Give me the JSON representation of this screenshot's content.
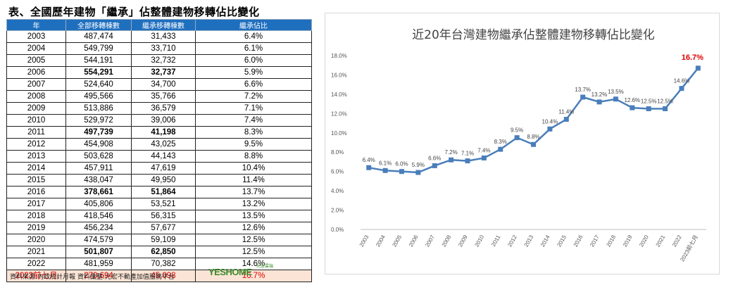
{
  "page": {
    "title": "表、全國歷年建物「繼承」佔整體建物移轉佔比變化",
    "source": "資料來源:內政統計月報 資料彙整:元宏不動產加值服務平台",
    "logo_text": "YESHOME",
    "logo_sub": "元宏雲端"
  },
  "table": {
    "headers": [
      "年",
      "全部移轉棟數",
      "繼承移轉棟數",
      "繼承佔比"
    ],
    "rows": [
      {
        "year": "2003",
        "total": "487,474",
        "inherit": "31,433",
        "pct": "6.4%",
        "bold": false
      },
      {
        "year": "2004",
        "total": "549,799",
        "inherit": "33,710",
        "pct": "6.1%",
        "bold": false
      },
      {
        "year": "2005",
        "total": "544,191",
        "inherit": "32,732",
        "pct": "6.0%",
        "bold": false
      },
      {
        "year": "2006",
        "total": "554,291",
        "inherit": "32,737",
        "pct": "5.9%",
        "bold": true
      },
      {
        "year": "2007",
        "total": "524,640",
        "inherit": "34,700",
        "pct": "6.6%",
        "bold": false
      },
      {
        "year": "2008",
        "total": "495,566",
        "inherit": "35,766",
        "pct": "7.2%",
        "bold": false
      },
      {
        "year": "2009",
        "total": "513,886",
        "inherit": "36,579",
        "pct": "7.1%",
        "bold": false
      },
      {
        "year": "2010",
        "total": "529,972",
        "inherit": "39,006",
        "pct": "7.4%",
        "bold": false
      },
      {
        "year": "2011",
        "total": "497,739",
        "inherit": "41,198",
        "pct": "8.3%",
        "bold": true
      },
      {
        "year": "2012",
        "total": "454,908",
        "inherit": "43,025",
        "pct": "9.5%",
        "bold": false
      },
      {
        "year": "2013",
        "total": "503,628",
        "inherit": "44,143",
        "pct": "8.8%",
        "bold": false
      },
      {
        "year": "2014",
        "total": "457,911",
        "inherit": "47,619",
        "pct": "10.4%",
        "bold": false
      },
      {
        "year": "2015",
        "total": "438,047",
        "inherit": "49,950",
        "pct": "11.4%",
        "bold": false
      },
      {
        "year": "2016",
        "total": "378,661",
        "inherit": "51,864",
        "pct": "13.7%",
        "bold": true
      },
      {
        "year": "2017",
        "total": "405,806",
        "inherit": "53,521",
        "pct": "13.2%",
        "bold": false
      },
      {
        "year": "2018",
        "total": "418,546",
        "inherit": "56,315",
        "pct": "13.5%",
        "bold": false
      },
      {
        "year": "2019",
        "total": "456,234",
        "inherit": "57,677",
        "pct": "12.6%",
        "bold": false
      },
      {
        "year": "2020",
        "total": "474,579",
        "inherit": "59,109",
        "pct": "12.5%",
        "bold": false
      },
      {
        "year": "2021",
        "total": "501,807",
        "inherit": "62,850",
        "pct": "12.5%",
        "bold": true
      },
      {
        "year": "2022",
        "total": "481,959",
        "inherit": "70,382",
        "pct": "14.6%",
        "bold": false
      },
      {
        "year": "2023前七月",
        "total": "270,694",
        "inherit": "45,098",
        "pct": "16.7%",
        "bold": false,
        "highlight": true
      }
    ]
  },
  "chart_data": {
    "type": "line",
    "title": "近20年台灣建物繼承佔整體建物移轉佔比變化",
    "x": [
      "2003",
      "2004",
      "2005",
      "2006",
      "2007",
      "2008",
      "2009",
      "2010",
      "2011",
      "2012",
      "2013",
      "2014",
      "2015",
      "2016",
      "2017",
      "2018",
      "2019",
      "2020",
      "2021",
      "2022",
      "2023前七月"
    ],
    "series": [
      {
        "values": [
          6.4,
          6.1,
          6.0,
          5.9,
          6.6,
          7.2,
          7.1,
          7.4,
          8.3,
          9.5,
          8.8,
          10.4,
          11.4,
          13.7,
          13.2,
          13.5,
          12.6,
          12.5,
          12.5,
          14.6,
          16.7
        ]
      }
    ],
    "data_labels": [
      "6.4%",
      "6.1%",
      "6.0%",
      "5.9%",
      "6.6%",
      "7.2%",
      "7.1%",
      "7.4%",
      "8.3%",
      "9.5%",
      "8.8%",
      "10.4%",
      "11.4%",
      "13.7%",
      "13.2%",
      "13.5%",
      "12.6%",
      "12.5%",
      "12.5%",
      "14.6%",
      "16.7%"
    ],
    "y_ticks": [
      "0.0%",
      "2.0%",
      "4.0%",
      "6.0%",
      "8.0%",
      "10.0%",
      "12.0%",
      "14.0%",
      "16.0%",
      "18.0%"
    ],
    "ylim": [
      0,
      18
    ],
    "grid": false,
    "line_color": "#4a7ebb",
    "highlight_color": "#e00000"
  }
}
